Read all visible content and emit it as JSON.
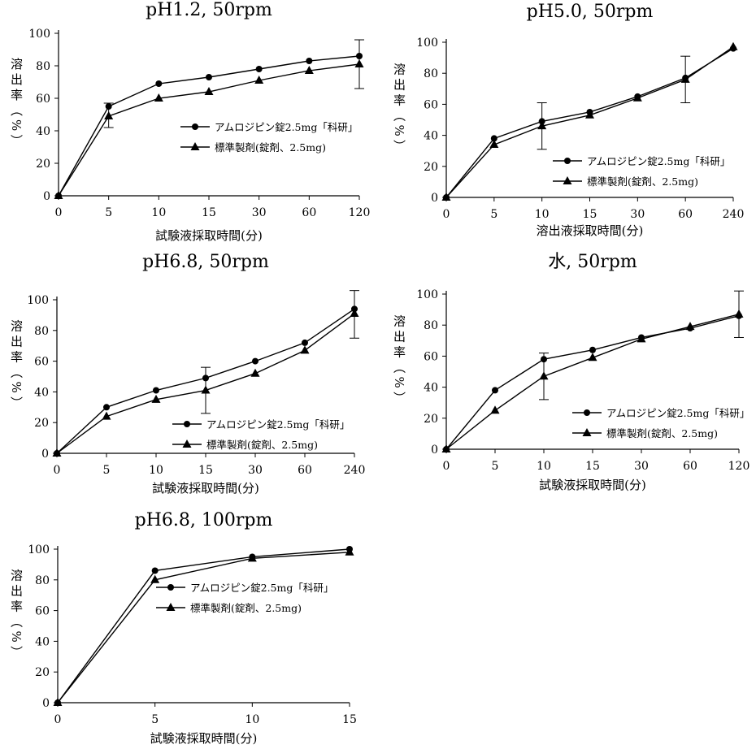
{
  "chart_data": [
    {
      "type": "line",
      "title": "pH1.2, 50rpm",
      "xlabel": "試験液採取時間(分)",
      "ylabel": "溶出率（%）",
      "x": [
        "0",
        "5",
        "10",
        "15",
        "30",
        "60",
        "120"
      ],
      "ylim": [
        0,
        100
      ],
      "yticks": [
        0,
        20,
        40,
        60,
        80,
        100
      ],
      "legend_position": "center-right",
      "series": [
        {
          "name": "アムロジピン錠2.5mg「科研」",
          "marker": "circle",
          "values": [
            0,
            55,
            69,
            73,
            78,
            83,
            86
          ]
        },
        {
          "name": "標準製剤(錠剤、2.5mg)",
          "marker": "triangle",
          "values": [
            0,
            49,
            60,
            64,
            71,
            77,
            81
          ]
        }
      ],
      "error_bars": [
        {
          "x": "5",
          "low": 42,
          "high": 57
        },
        {
          "x": "120",
          "low": 66,
          "high": 96
        }
      ]
    },
    {
      "type": "line",
      "title": "pH5.0, 50rpm",
      "xlabel": "溶出液採取時間(分)",
      "ylabel": "溶出率（%）",
      "x": [
        "0",
        "5",
        "10",
        "15",
        "30",
        "60",
        "240"
      ],
      "ylim": [
        0,
        100
      ],
      "yticks": [
        0,
        20,
        40,
        60,
        80,
        100
      ],
      "legend_position": "bottom-right",
      "series": [
        {
          "name": "アムロジピン錠2.5mg「科研」",
          "marker": "circle",
          "values": [
            0,
            38,
            49,
            55,
            65,
            77,
            96
          ]
        },
        {
          "name": "標準製剤(錠剤、2.5mg)",
          "marker": "triangle",
          "values": [
            0,
            34,
            46,
            53,
            64,
            76,
            97
          ]
        }
      ],
      "error_bars": [
        {
          "x": "10",
          "low": 31,
          "high": 61
        },
        {
          "x": "60",
          "low": 61,
          "high": 91
        }
      ]
    },
    {
      "type": "line",
      "title": "pH6.8, 50rpm",
      "xlabel": "試験液採取時間(分)",
      "ylabel": "溶出率（%）",
      "x": [
        "0",
        "5",
        "10",
        "15",
        "30",
        "60",
        "240"
      ],
      "ylim": [
        0,
        100
      ],
      "yticks": [
        0,
        20,
        40,
        60,
        80,
        100
      ],
      "legend_position": "bottom-right",
      "series": [
        {
          "name": "アムロジピン錠2.5mg「科研」",
          "marker": "circle",
          "values": [
            0,
            30,
            41,
            49,
            60,
            72,
            94
          ]
        },
        {
          "name": "標準製剤(錠剤、2.5mg)",
          "marker": "triangle",
          "values": [
            0,
            24,
            35,
            41,
            52,
            67,
            91
          ]
        }
      ],
      "error_bars": [
        {
          "x": "15",
          "low": 26,
          "high": 56
        },
        {
          "x": "240",
          "low": 75,
          "high": 106
        }
      ]
    },
    {
      "type": "line",
      "title": "水, 50rpm",
      "xlabel": "試験液採取時間(分)",
      "ylabel": "溶出率（%）",
      "x": [
        "0",
        "5",
        "10",
        "15",
        "30",
        "60",
        "120"
      ],
      "ylim": [
        0,
        100
      ],
      "yticks": [
        0,
        20,
        40,
        60,
        80,
        100
      ],
      "legend_position": "bottom-right",
      "series": [
        {
          "name": "アムロジピン錠2.5mg「科研」",
          "marker": "circle",
          "values": [
            0,
            38,
            58,
            64,
            72,
            78,
            86
          ]
        },
        {
          "name": "標準製剤(錠剤、2.5mg)",
          "marker": "triangle",
          "values": [
            0,
            25,
            47,
            59,
            71,
            79,
            87
          ]
        }
      ],
      "error_bars": [
        {
          "x": "10",
          "low": 32,
          "high": 62
        },
        {
          "x": "120",
          "low": 72,
          "high": 102
        }
      ]
    },
    {
      "type": "line",
      "title": "pH6.8, 100rpm",
      "xlabel": "試験液採取時間(分)",
      "ylabel": "溶出率（%）",
      "x": [
        "0",
        "5",
        "10",
        "15"
      ],
      "ylim": [
        0,
        100
      ],
      "yticks": [
        0,
        20,
        40,
        60,
        80,
        100
      ],
      "legend_position": "center",
      "series": [
        {
          "name": "アムロジピン錠2.5mg「科研」",
          "marker": "circle",
          "values": [
            0,
            86,
            95,
            100
          ]
        },
        {
          "name": "標準製剤(錠剤、2.5mg)",
          "marker": "triangle",
          "values": [
            0,
            80,
            94,
            98
          ]
        }
      ],
      "error_bars": []
    }
  ]
}
